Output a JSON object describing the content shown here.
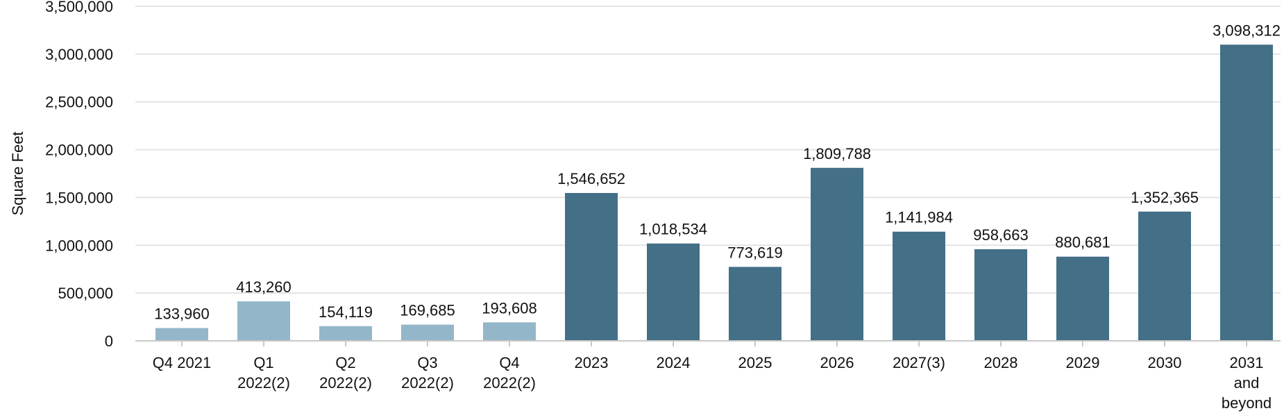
{
  "chart_data": {
    "type": "bar",
    "title": "",
    "ylabel": "Square Feet",
    "xlabel": "",
    "ylim": [
      0,
      3500000
    ],
    "yticks": [
      0,
      500000,
      1000000,
      1500000,
      2000000,
      2500000,
      3000000,
      3500000
    ],
    "grid": true,
    "categories": [
      [
        "Q4 2021"
      ],
      [
        "Q1",
        "2022(2)"
      ],
      [
        "Q2",
        "2022(2)"
      ],
      [
        "Q3",
        "2022(2)"
      ],
      [
        "Q4",
        "2022(2)"
      ],
      [
        "2023"
      ],
      [
        "2024"
      ],
      [
        "2025"
      ],
      [
        "2026"
      ],
      [
        "2027(3)"
      ],
      [
        "2028"
      ],
      [
        "2029"
      ],
      [
        "2030"
      ],
      [
        "2031",
        "and",
        "beyond"
      ]
    ],
    "values": [
      133960,
      413260,
      154119,
      169685,
      193608,
      1546652,
      1018534,
      773619,
      1809788,
      1141984,
      958663,
      880681,
      1352365,
      3098312
    ],
    "bar_colors": [
      "#94b6c9",
      "#94b6c9",
      "#94b6c9",
      "#94b6c9",
      "#94b6c9",
      "#436f87",
      "#436f87",
      "#436f87",
      "#436f87",
      "#436f87",
      "#436f87",
      "#436f87",
      "#436f87",
      "#436f87"
    ]
  }
}
